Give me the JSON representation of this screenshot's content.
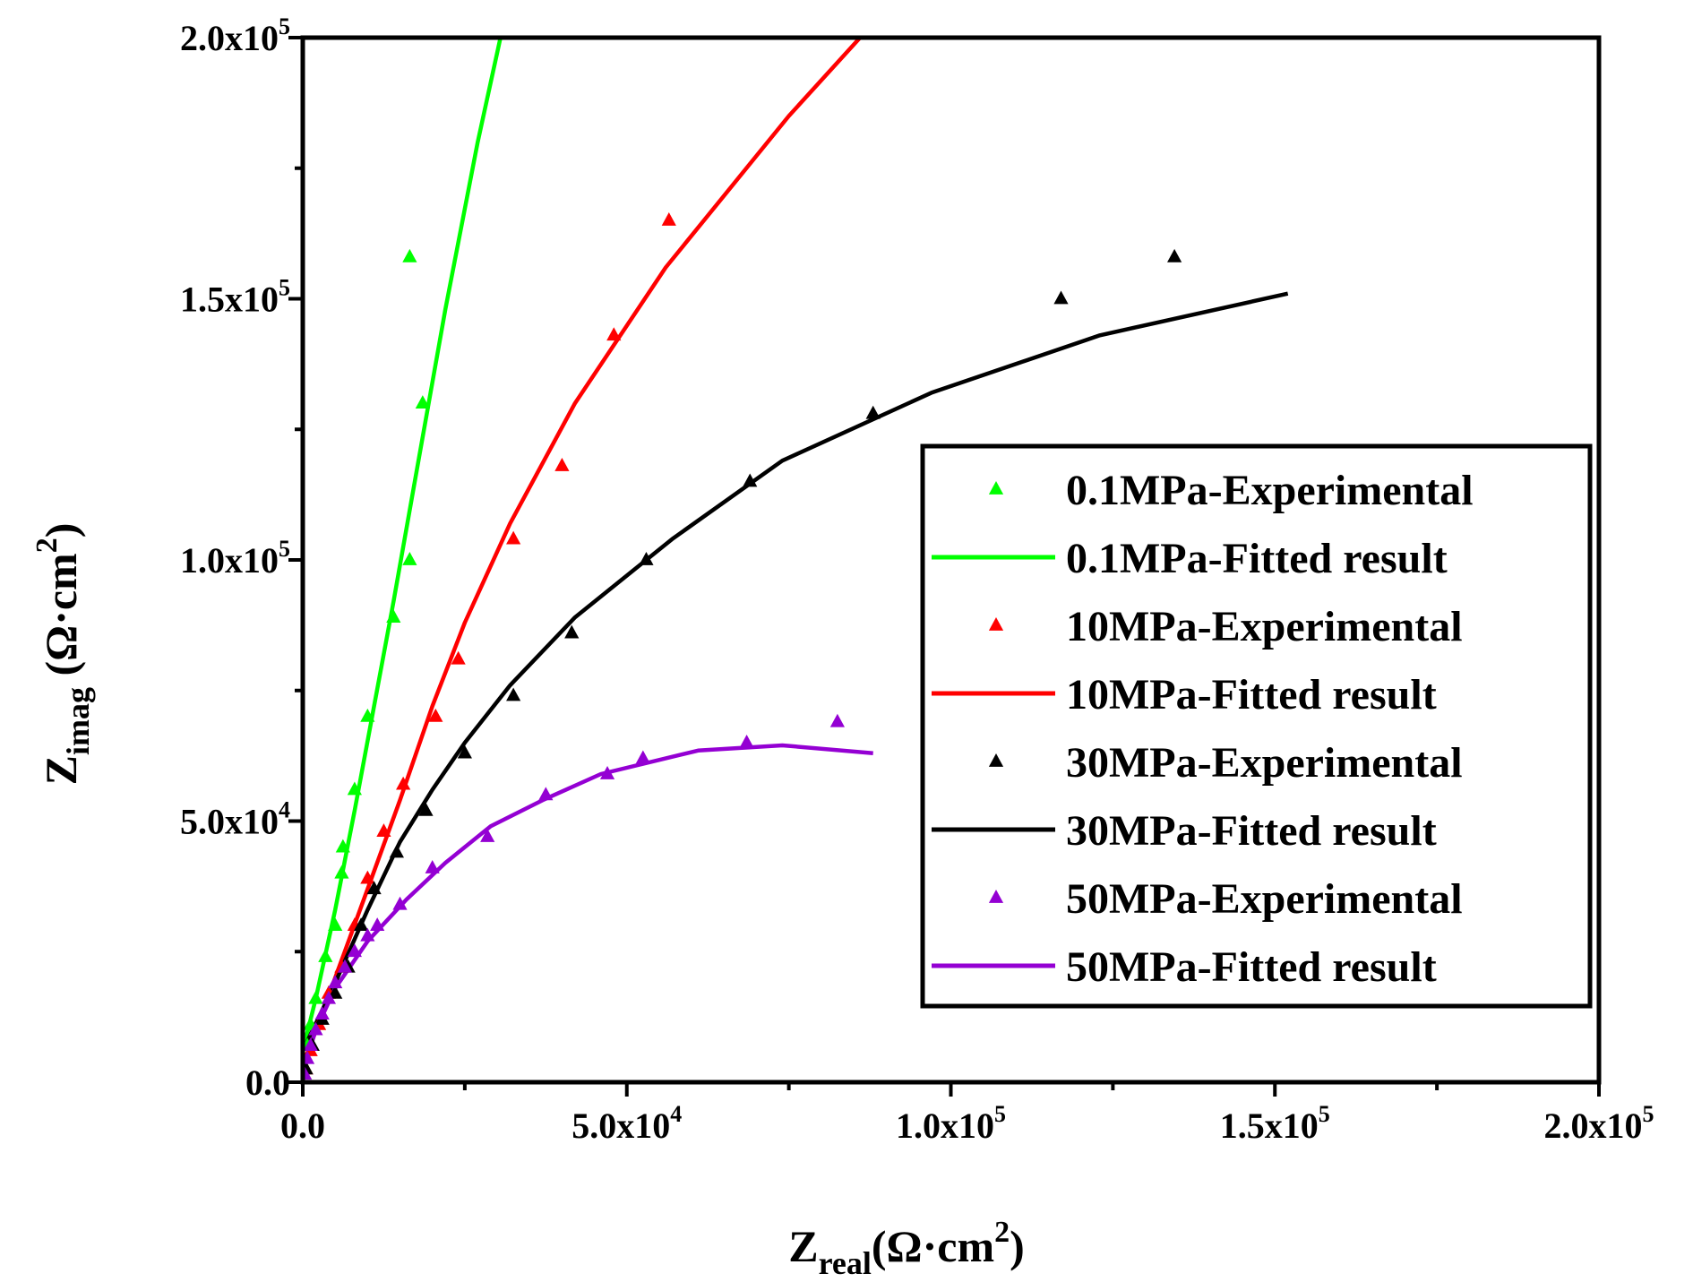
{
  "chart_data": {
    "type": "scatter",
    "xlabel": {
      "main": "Z",
      "sub": "real",
      "unit": "(Ω·cm",
      "sup": "2",
      "close": ")"
    },
    "ylabel": {
      "main": "Z",
      "sub": "imag",
      "unit": " (Ω·cm",
      "sup": "2",
      "close": ")"
    },
    "xlim": [
      0,
      200000
    ],
    "ylim": [
      0,
      200000
    ],
    "x_ticks": [
      {
        "value": 0,
        "mant": "0.0",
        "exp": ""
      },
      {
        "value": 50000,
        "mant": "5.0x10",
        "exp": "4"
      },
      {
        "value": 100000,
        "mant": "1.0x10",
        "exp": "5"
      },
      {
        "value": 150000,
        "mant": "1.5x10",
        "exp": "5"
      },
      {
        "value": 200000,
        "mant": "2.0x10",
        "exp": "5"
      }
    ],
    "y_ticks": [
      {
        "value": 0,
        "mant": "0.0",
        "exp": ""
      },
      {
        "value": 50000,
        "mant": "5.0x10",
        "exp": "4"
      },
      {
        "value": 100000,
        "mant": "1.0x10",
        "exp": "5"
      },
      {
        "value": 150000,
        "mant": "1.5x10",
        "exp": "5"
      },
      {
        "value": 200000,
        "mant": "2.0x10",
        "exp": "5"
      }
    ],
    "minor_tick_step": 25000,
    "legend_position": "right-center",
    "series": [
      {
        "name": "0.1MPa-Experimental",
        "kind": "scatter",
        "color": "#00ff00",
        "points": [
          [
            300,
            3000
          ],
          [
            700,
            7000
          ],
          [
            1200,
            11000
          ],
          [
            2000,
            16000
          ],
          [
            3500,
            24000
          ],
          [
            5000,
            30000
          ],
          [
            6000,
            40000
          ],
          [
            6200,
            45000
          ],
          [
            8000,
            56000
          ],
          [
            10000,
            70000
          ],
          [
            14000,
            89000
          ],
          [
            16500,
            100000
          ],
          [
            18500,
            130000
          ],
          [
            16500,
            158000
          ]
        ]
      },
      {
        "name": "0.1MPa-Fitted result",
        "kind": "line",
        "color": "#00ff00",
        "points": [
          [
            0,
            6000
          ],
          [
            2000,
            16000
          ],
          [
            5000,
            33000
          ],
          [
            8000,
            52000
          ],
          [
            11000,
            72000
          ],
          [
            14000,
            92000
          ],
          [
            18000,
            120000
          ],
          [
            22000,
            148000
          ],
          [
            27000,
            180000
          ],
          [
            30500,
            200000
          ]
        ]
      },
      {
        "name": "10MPa-Experimental",
        "kind": "scatter",
        "color": "#ff0000",
        "points": [
          [
            500,
            2500
          ],
          [
            1200,
            6000
          ],
          [
            2500,
            11000
          ],
          [
            4000,
            17000
          ],
          [
            6000,
            22000
          ],
          [
            8000,
            30000
          ],
          [
            10000,
            39000
          ],
          [
            12500,
            48000
          ],
          [
            15500,
            57000
          ],
          [
            20500,
            70000
          ],
          [
            24000,
            81000
          ],
          [
            32500,
            104000
          ],
          [
            40000,
            118000
          ],
          [
            48000,
            143000
          ],
          [
            56500,
            165000
          ]
        ]
      },
      {
        "name": "10MPa-Fitted result",
        "kind": "line",
        "color": "#ff0000",
        "points": [
          [
            0,
            3000
          ],
          [
            5000,
            20000
          ],
          [
            10000,
            37000
          ],
          [
            15000,
            54000
          ],
          [
            20000,
            72000
          ],
          [
            25000,
            88000
          ],
          [
            32000,
            107000
          ],
          [
            42000,
            130000
          ],
          [
            56000,
            156000
          ],
          [
            75000,
            185000
          ],
          [
            86000,
            200000
          ]
        ]
      },
      {
        "name": "30MPa-Experimental",
        "kind": "scatter",
        "color": "#000000",
        "points": [
          [
            500,
            2500
          ],
          [
            1500,
            7000
          ],
          [
            3000,
            12000
          ],
          [
            5000,
            17000
          ],
          [
            7000,
            22000
          ],
          [
            9000,
            30000
          ],
          [
            11000,
            37000
          ],
          [
            14500,
            44000
          ],
          [
            19000,
            52000
          ],
          [
            25000,
            63000
          ],
          [
            32500,
            74000
          ],
          [
            41500,
            86000
          ],
          [
            53000,
            100000
          ],
          [
            69000,
            115000
          ],
          [
            88000,
            128000
          ],
          [
            117000,
            150000
          ],
          [
            134500,
            158000
          ]
        ]
      },
      {
        "name": "30MPa-Fitted result",
        "kind": "line",
        "color": "#000000",
        "points": [
          [
            0,
            6000
          ],
          [
            5000,
            19000
          ],
          [
            10000,
            33000
          ],
          [
            15000,
            46000
          ],
          [
            20000,
            56000
          ],
          [
            25000,
            65000
          ],
          [
            32000,
            76000
          ],
          [
            42000,
            89000
          ],
          [
            57000,
            104000
          ],
          [
            74000,
            119000
          ],
          [
            97000,
            132000
          ],
          [
            123000,
            143000
          ],
          [
            152000,
            151000
          ]
        ]
      },
      {
        "name": "50MPa-Experimental",
        "kind": "scatter",
        "color": "#9400d3",
        "points": [
          [
            300,
            1500
          ],
          [
            700,
            4500
          ],
          [
            1200,
            7000
          ],
          [
            2000,
            10000
          ],
          [
            3000,
            13000
          ],
          [
            4000,
            16000
          ],
          [
            5000,
            19000
          ],
          [
            6500,
            22000
          ],
          [
            8000,
            25000
          ],
          [
            10000,
            28000
          ],
          [
            11500,
            30000
          ],
          [
            15000,
            34000
          ],
          [
            20000,
            41000
          ],
          [
            28500,
            47000
          ],
          [
            37500,
            55000
          ],
          [
            47000,
            59000
          ],
          [
            52500,
            62000
          ],
          [
            68500,
            65000
          ],
          [
            82500,
            69000
          ]
        ]
      },
      {
        "name": "50MPa-Fitted result",
        "kind": "line",
        "color": "#9400d3",
        "points": [
          [
            0,
            2000
          ],
          [
            2000,
            10000
          ],
          [
            5000,
            18000
          ],
          [
            10000,
            27000
          ],
          [
            16000,
            35000
          ],
          [
            22000,
            42000
          ],
          [
            29000,
            49000
          ],
          [
            37000,
            54000
          ],
          [
            46000,
            59000
          ],
          [
            61000,
            63500
          ],
          [
            74000,
            64500
          ],
          [
            88000,
            63000
          ]
        ]
      }
    ]
  }
}
